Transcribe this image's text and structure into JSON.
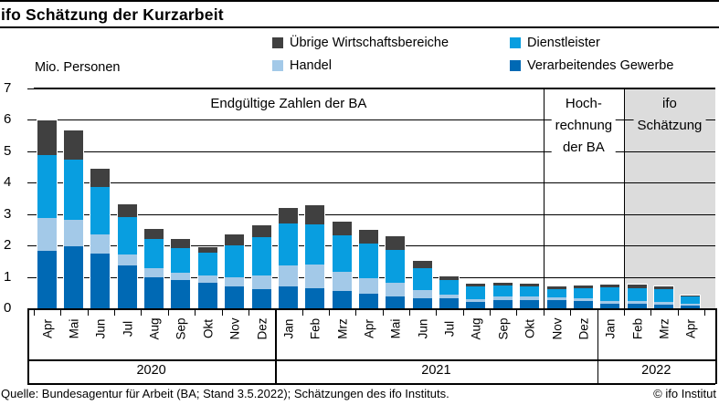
{
  "header": {
    "title": "ifo Schätzung der Kurzarbeit"
  },
  "axis": {
    "unit_label": "Mio. Personen"
  },
  "legend": [
    {
      "label": "Übrige Wirtschaftsbereiche",
      "color": "#404040"
    },
    {
      "label": "Dienstleister",
      "color": "#089ee0"
    },
    {
      "label": "Handel",
      "color": "#a3c9e8"
    },
    {
      "label": "Verarbeitendes Gewerbe",
      "color": "#0069b4"
    }
  ],
  "chart_data": {
    "type": "bar",
    "stacked": true,
    "title": "ifo Schätzung der Kurzarbeit",
    "ylabel": "Mio. Personen",
    "ylim": [
      0,
      7
    ],
    "yticks": [
      0,
      1,
      2,
      3,
      4,
      5,
      6,
      7
    ],
    "grid": true,
    "legend_position": "top",
    "shade_color": "#dcdcdc",
    "categories": [
      "Apr",
      "Mai",
      "Jun",
      "Jul",
      "Aug",
      "Sep",
      "Okt",
      "Nov",
      "Dez",
      "Jan",
      "Feb",
      "Mrz",
      "Apr",
      "Mai",
      "Jun",
      "Jul",
      "Aug",
      "Sep",
      "Okt",
      "Nov",
      "Dez",
      "Jan",
      "Feb",
      "Mrz",
      "Apr"
    ],
    "years": [
      {
        "label": "2020",
        "months": 9
      },
      {
        "label": "2021",
        "months": 12
      },
      {
        "label": "2022",
        "months": 4
      }
    ],
    "series": [
      {
        "name": "Verarbeitendes Gewerbe",
        "color": "#0069b4",
        "values": [
          1.85,
          2.0,
          1.77,
          1.38,
          1.02,
          0.92,
          0.83,
          0.74,
          0.63,
          0.74,
          0.68,
          0.57,
          0.5,
          0.41,
          0.36,
          0.34,
          0.23,
          0.3,
          0.3,
          0.3,
          0.26,
          0.17,
          0.17,
          0.15,
          0.12
        ]
      },
      {
        "name": "Handel",
        "color": "#a3c9e8",
        "values": [
          1.05,
          0.85,
          0.6,
          0.37,
          0.29,
          0.25,
          0.25,
          0.28,
          0.44,
          0.64,
          0.75,
          0.62,
          0.5,
          0.42,
          0.24,
          0.13,
          0.09,
          0.12,
          0.1,
          0.09,
          0.09,
          0.08,
          0.1,
          0.08,
          0.06
        ]
      },
      {
        "name": "Dienstleister",
        "color": "#089ee0",
        "values": [
          2.0,
          1.9,
          1.53,
          1.17,
          0.94,
          0.77,
          0.71,
          1.01,
          1.23,
          1.35,
          1.28,
          1.16,
          1.1,
          1.07,
          0.7,
          0.47,
          0.4,
          0.33,
          0.33,
          0.25,
          0.31,
          0.44,
          0.41,
          0.4,
          0.22
        ]
      },
      {
        "name": "Übrige Wirtschaftsbereiche",
        "color": "#404040",
        "values": [
          1.1,
          0.95,
          0.58,
          0.41,
          0.31,
          0.29,
          0.19,
          0.36,
          0.38,
          0.5,
          0.6,
          0.44,
          0.44,
          0.43,
          0.24,
          0.12,
          0.1,
          0.1,
          0.09,
          0.09,
          0.09,
          0.09,
          0.11,
          0.11,
          0.03
        ]
      }
    ],
    "sections": [
      {
        "label_lines": [
          "Endgültige Zahlen der BA"
        ],
        "from_month": 0,
        "to_month": 19,
        "shaded": false
      },
      {
        "label_lines": [
          "Hoch-",
          "rechnung",
          "der BA"
        ],
        "from_month": 19,
        "to_month": 22,
        "shaded": false
      },
      {
        "label_lines": [
          "ifo",
          "Schätzung"
        ],
        "from_month": 22,
        "to_month": 25,
        "shaded": true
      }
    ]
  },
  "footer": {
    "source": "Quelle: Bundesagentur für Arbeit (BA; Stand 3.5.2022); Schätzungen des ifo Instituts.",
    "copyright": "© ifo Institut"
  }
}
